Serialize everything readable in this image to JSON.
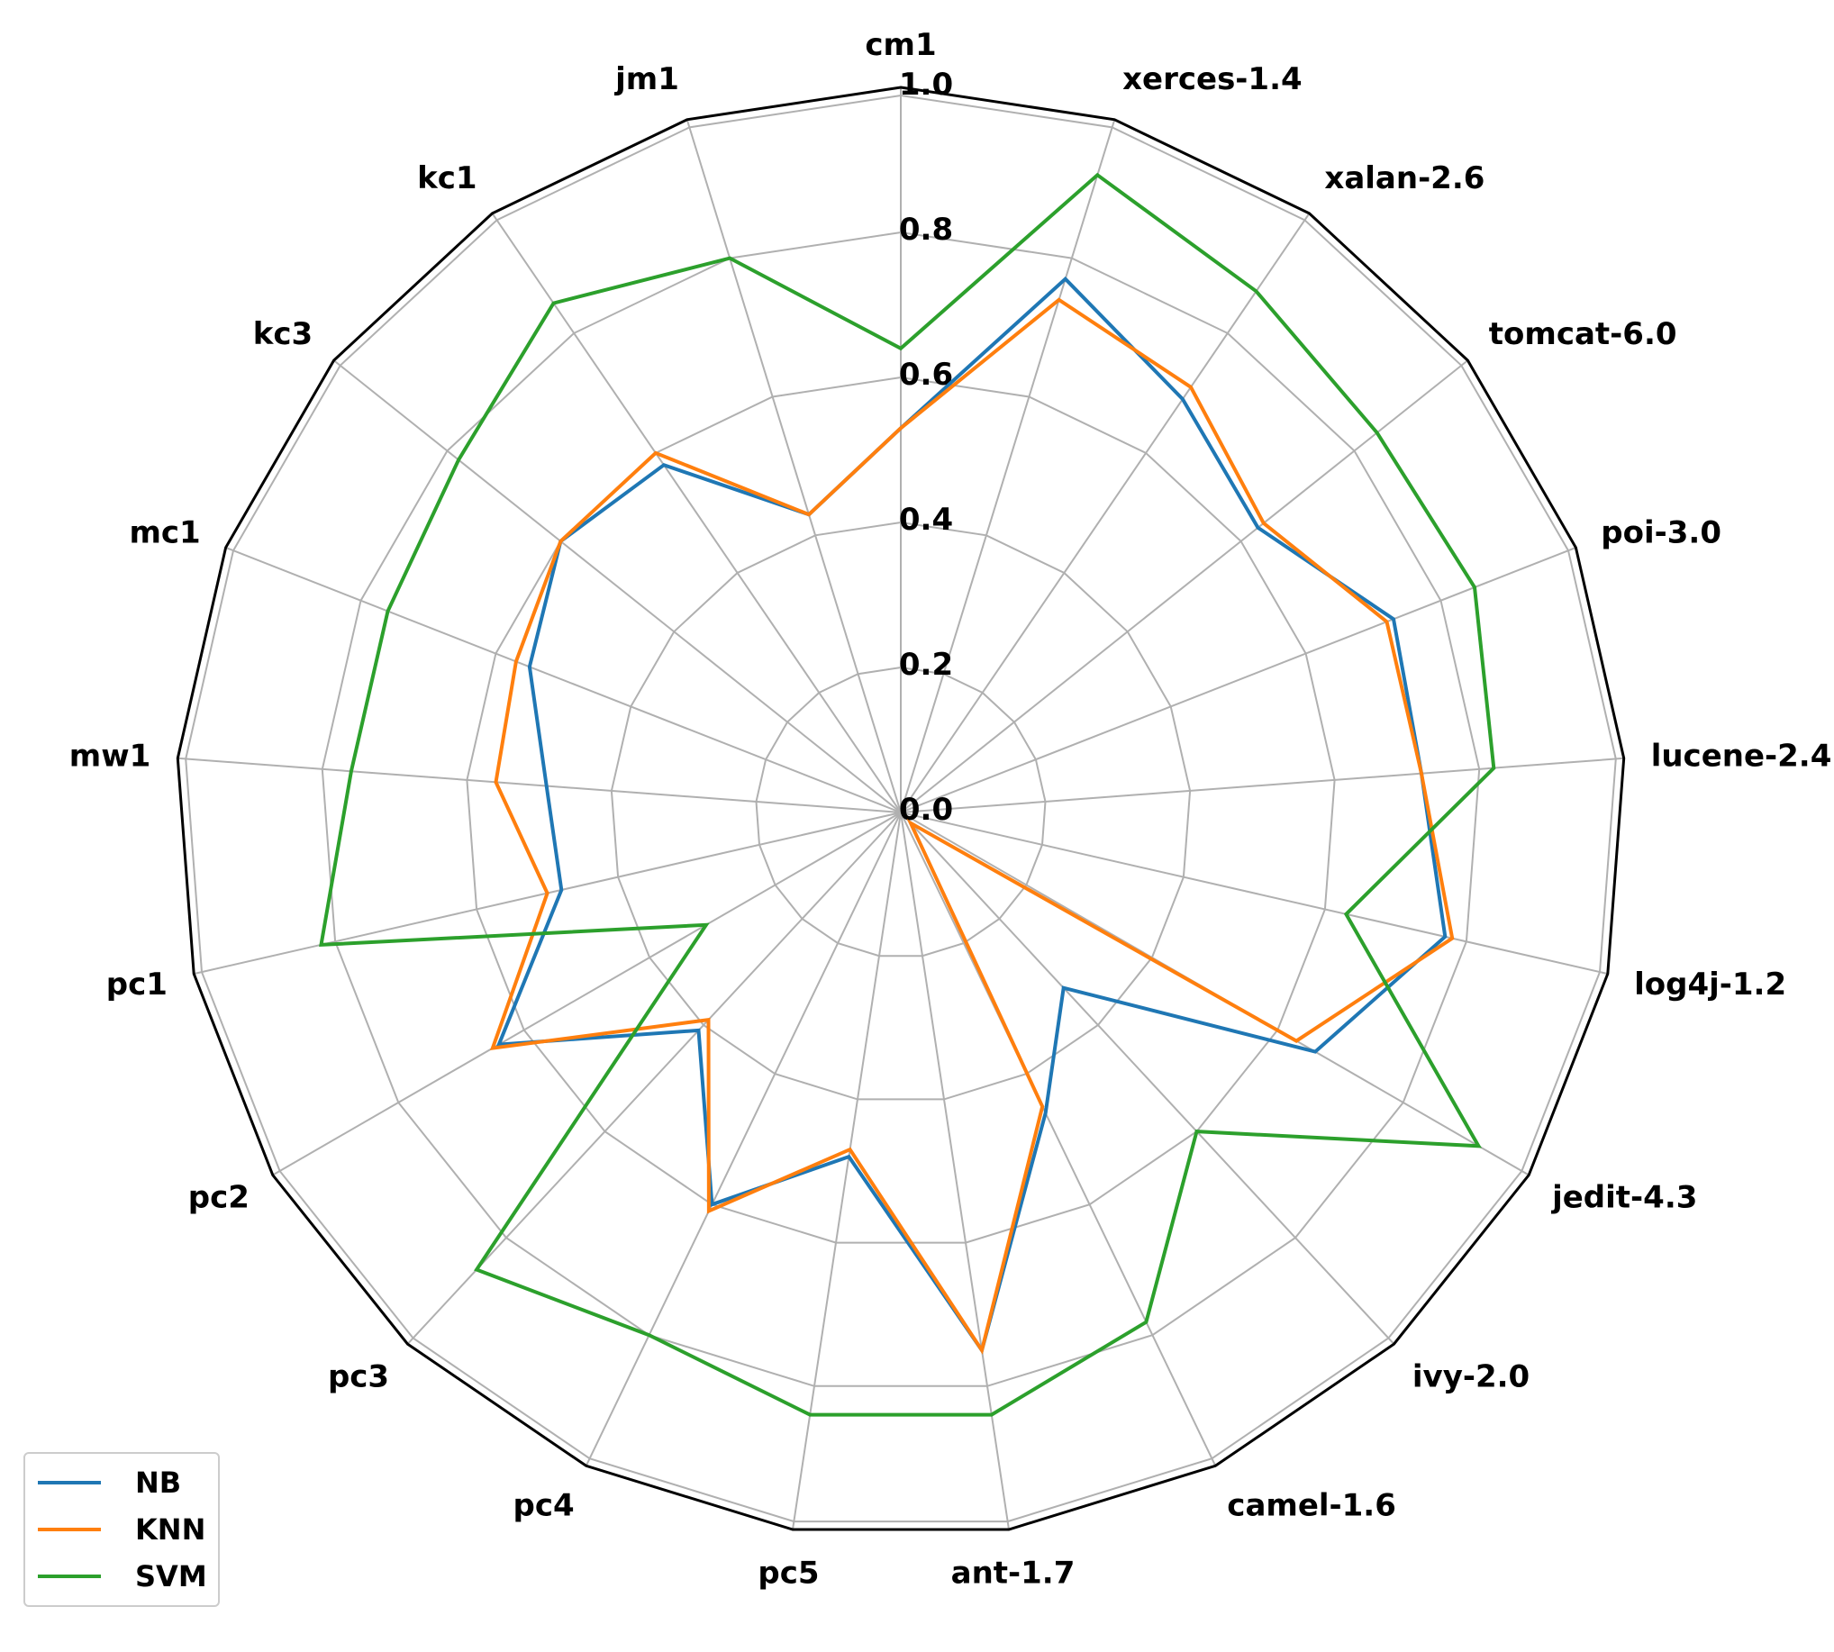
{
  "chart_data": {
    "type": "radar",
    "categories": [
      "cm1",
      "xerces-1.4",
      "xalan-2.6",
      "tomcat-6.0",
      "poi-3.0",
      "lucene-2.4",
      "log4j-1.2",
      "jedit-4.3",
      "ivy-2.0",
      "camel-1.6",
      "ant-1.7",
      "pc5",
      "pc4",
      "pc3",
      "pc2",
      "pc1",
      "mw1",
      "mc1",
      "kc3",
      "kc1",
      "jm1"
    ],
    "rlim": [
      0,
      1.0
    ],
    "rticks": [
      "0.0",
      "0.2",
      "0.4",
      "0.6",
      "0.8",
      "1.0"
    ],
    "grid": true,
    "legend_position": "bottom-left",
    "series": [
      {
        "name": "NB",
        "color": "#1f77b4",
        "values": [
          0.53,
          0.77,
          0.69,
          0.63,
          0.73,
          0.72,
          0.77,
          0.66,
          0.33,
          0.46,
          0.75,
          0.48,
          0.6,
          0.41,
          0.64,
          0.48,
          0.49,
          0.55,
          0.6,
          0.58,
          0.43
        ]
      },
      {
        "name": "KNN",
        "color": "#ff7f0e",
        "values": [
          0.53,
          0.74,
          0.71,
          0.64,
          0.72,
          0.72,
          0.78,
          0.63,
          0.02,
          0.45,
          0.75,
          0.47,
          0.61,
          0.39,
          0.65,
          0.5,
          0.56,
          0.57,
          0.6,
          0.6,
          0.43
        ]
      },
      {
        "name": "SVM",
        "color": "#2ca02c",
        "values": [
          0.64,
          0.92,
          0.87,
          0.84,
          0.85,
          0.82,
          0.63,
          0.92,
          0.6,
          0.78,
          0.84,
          0.84,
          0.8,
          0.86,
          0.31,
          0.82,
          0.76,
          0.76,
          0.78,
          0.85,
          0.8
        ]
      }
    ]
  }
}
